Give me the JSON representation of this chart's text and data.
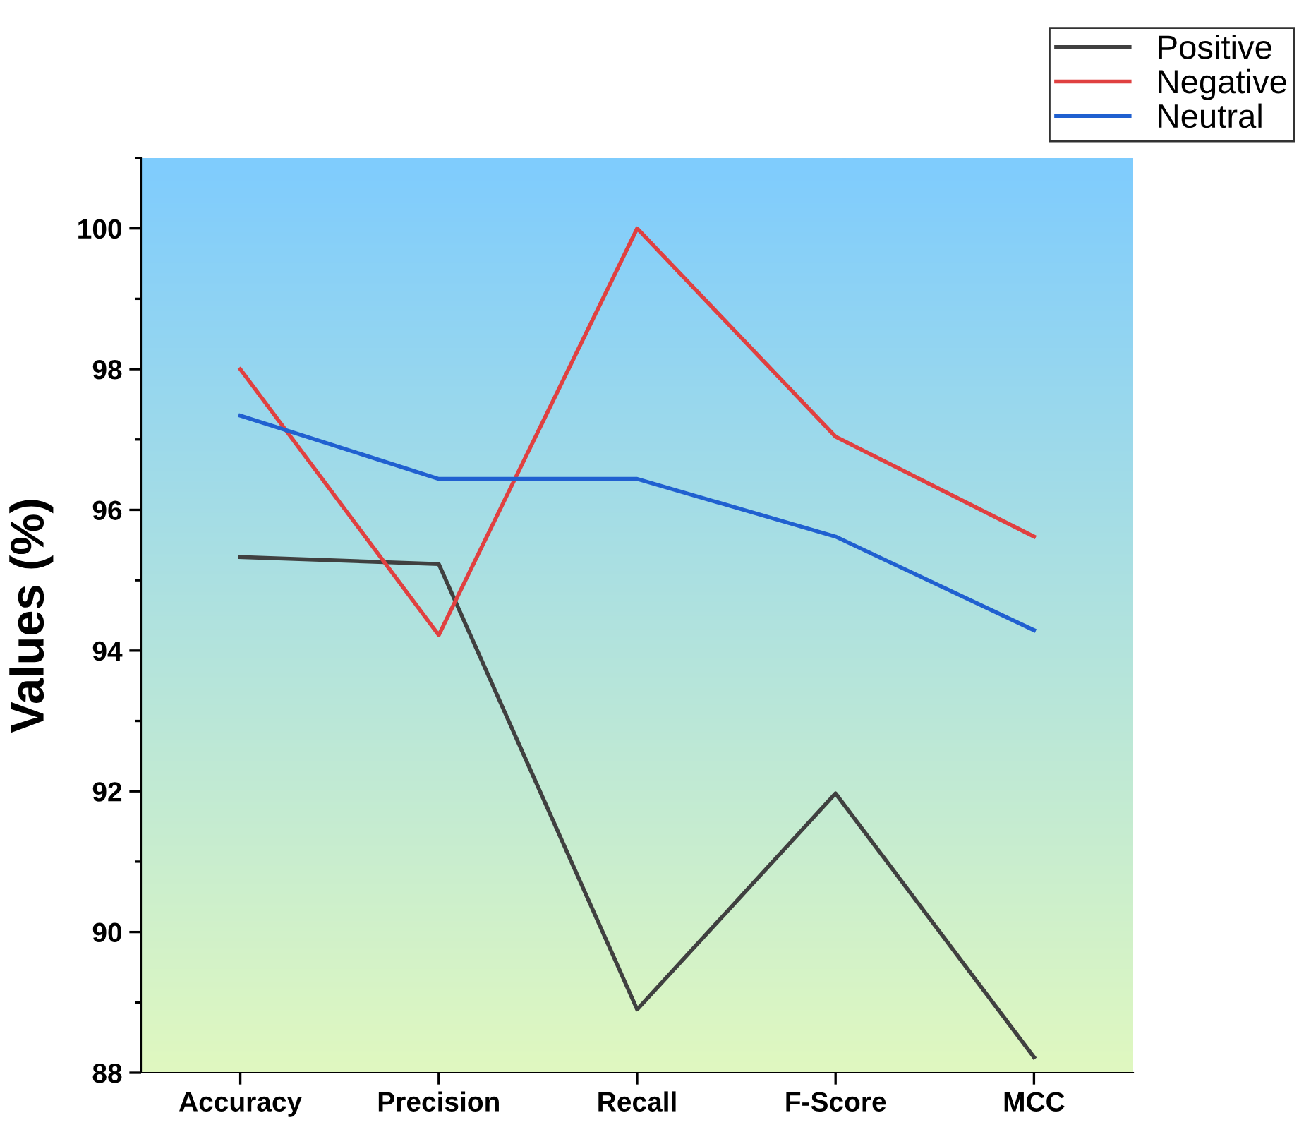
{
  "chart_data": {
    "type": "line",
    "ylabel": "Values (%)",
    "categories": [
      "Accuracy",
      "Precision",
      "Recall",
      "F-Score",
      "MCC"
    ],
    "series": [
      {
        "name": "Positive",
        "color": "#404040",
        "values": [
          95.33,
          95.23,
          88.9,
          91.97,
          88.22
        ]
      },
      {
        "name": "Negative",
        "color": "#e04040",
        "values": [
          98.0,
          94.22,
          100.0,
          97.04,
          95.62
        ]
      },
      {
        "name": "Neutral",
        "color": "#2060d0",
        "values": [
          97.34,
          96.44,
          96.44,
          95.62,
          94.29
        ]
      }
    ],
    "ylim": [
      88,
      101
    ],
    "yticks": [
      88,
      90,
      92,
      94,
      96,
      98,
      100
    ],
    "grid": false,
    "legend": "top right",
    "marker": "none",
    "line_style": "solid"
  }
}
